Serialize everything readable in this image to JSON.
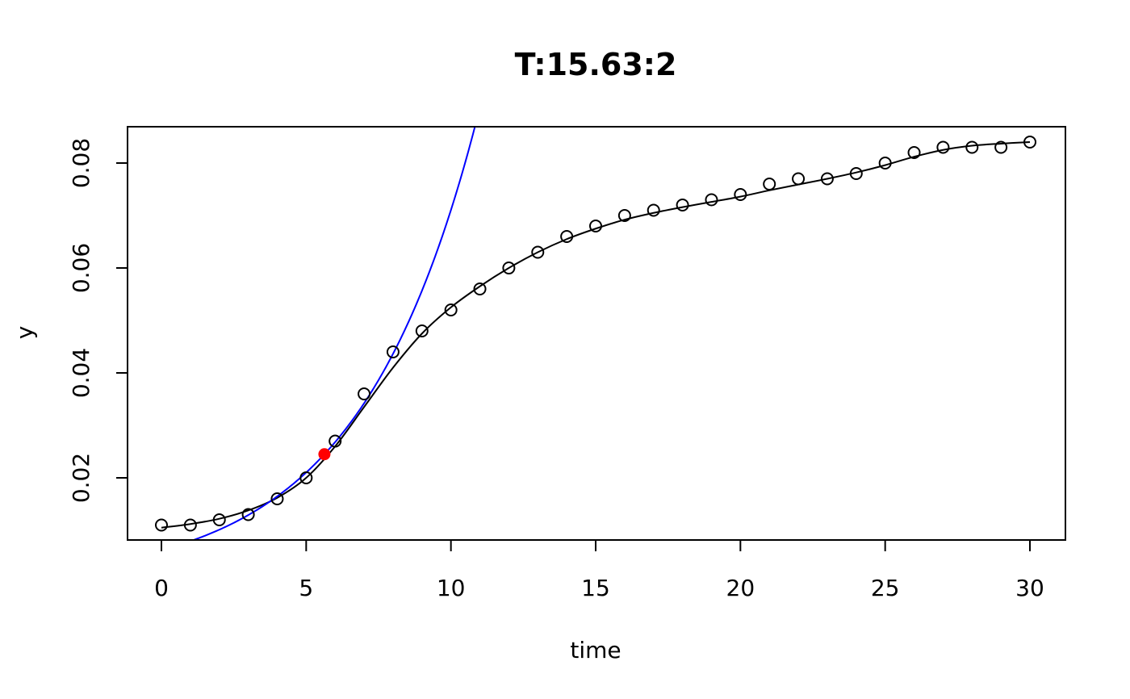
{
  "chart_data": {
    "type": "scatter",
    "title": "T:15.63:2",
    "xlabel": "time",
    "ylabel": "y",
    "xlim": [
      0,
      30
    ],
    "ylim": [
      0.008,
      0.087
    ],
    "x_ticks": [
      0,
      5,
      10,
      15,
      20,
      25,
      30
    ],
    "y_ticks": [
      0.02,
      0.04,
      0.06,
      0.08
    ],
    "x_tick_labels": [
      "0",
      "5",
      "10",
      "15",
      "20",
      "25",
      "30"
    ],
    "y_tick_labels": [
      "0.02",
      "0.04",
      "0.06",
      "0.08"
    ],
    "grid": false,
    "legend": "none",
    "series": [
      {
        "kind": "points",
        "marker": "open-circle",
        "color": "#000000",
        "x": [
          0,
          1,
          2,
          3,
          4,
          5,
          6,
          7,
          8,
          9,
          10,
          11,
          12,
          13,
          14,
          15,
          16,
          17,
          18,
          19,
          20,
          21,
          22,
          23,
          24,
          25,
          26,
          27,
          28,
          29,
          30
        ],
        "y": [
          0.011,
          0.011,
          0.012,
          0.013,
          0.016,
          0.02,
          0.027,
          0.036,
          0.044,
          0.048,
          0.052,
          0.056,
          0.06,
          0.063,
          0.066,
          0.068,
          0.07,
          0.071,
          0.072,
          0.073,
          0.074,
          0.076,
          0.077,
          0.077,
          0.078,
          0.08,
          0.082,
          0.083,
          0.083,
          0.083,
          0.084
        ]
      },
      {
        "kind": "smooth-line",
        "color": "#000000",
        "x": [
          0,
          1,
          2,
          3,
          4,
          5,
          6,
          7,
          8,
          9,
          10,
          11,
          12,
          13,
          14,
          15,
          16,
          17,
          18,
          19,
          20,
          21,
          22,
          23,
          24,
          25,
          26,
          27,
          28,
          29,
          30
        ],
        "y": [
          0.0105,
          0.0112,
          0.0122,
          0.0138,
          0.0162,
          0.02,
          0.026,
          0.0335,
          0.041,
          0.0475,
          0.0525,
          0.0565,
          0.06,
          0.063,
          0.0655,
          0.0675,
          0.0692,
          0.0705,
          0.0716,
          0.0726,
          0.0736,
          0.0748,
          0.0759,
          0.077,
          0.0782,
          0.0796,
          0.0812,
          0.0825,
          0.0833,
          0.0837,
          0.084
        ]
      },
      {
        "kind": "exponential-line",
        "color": "#0000ff",
        "x0": 5.63,
        "y0": 0.0245,
        "rate": 0.2436,
        "x_range": [
          0,
          12
        ]
      },
      {
        "kind": "highlight-point",
        "color": "#ff0000",
        "x": [
          5.63
        ],
        "y": [
          0.0245
        ]
      }
    ]
  }
}
